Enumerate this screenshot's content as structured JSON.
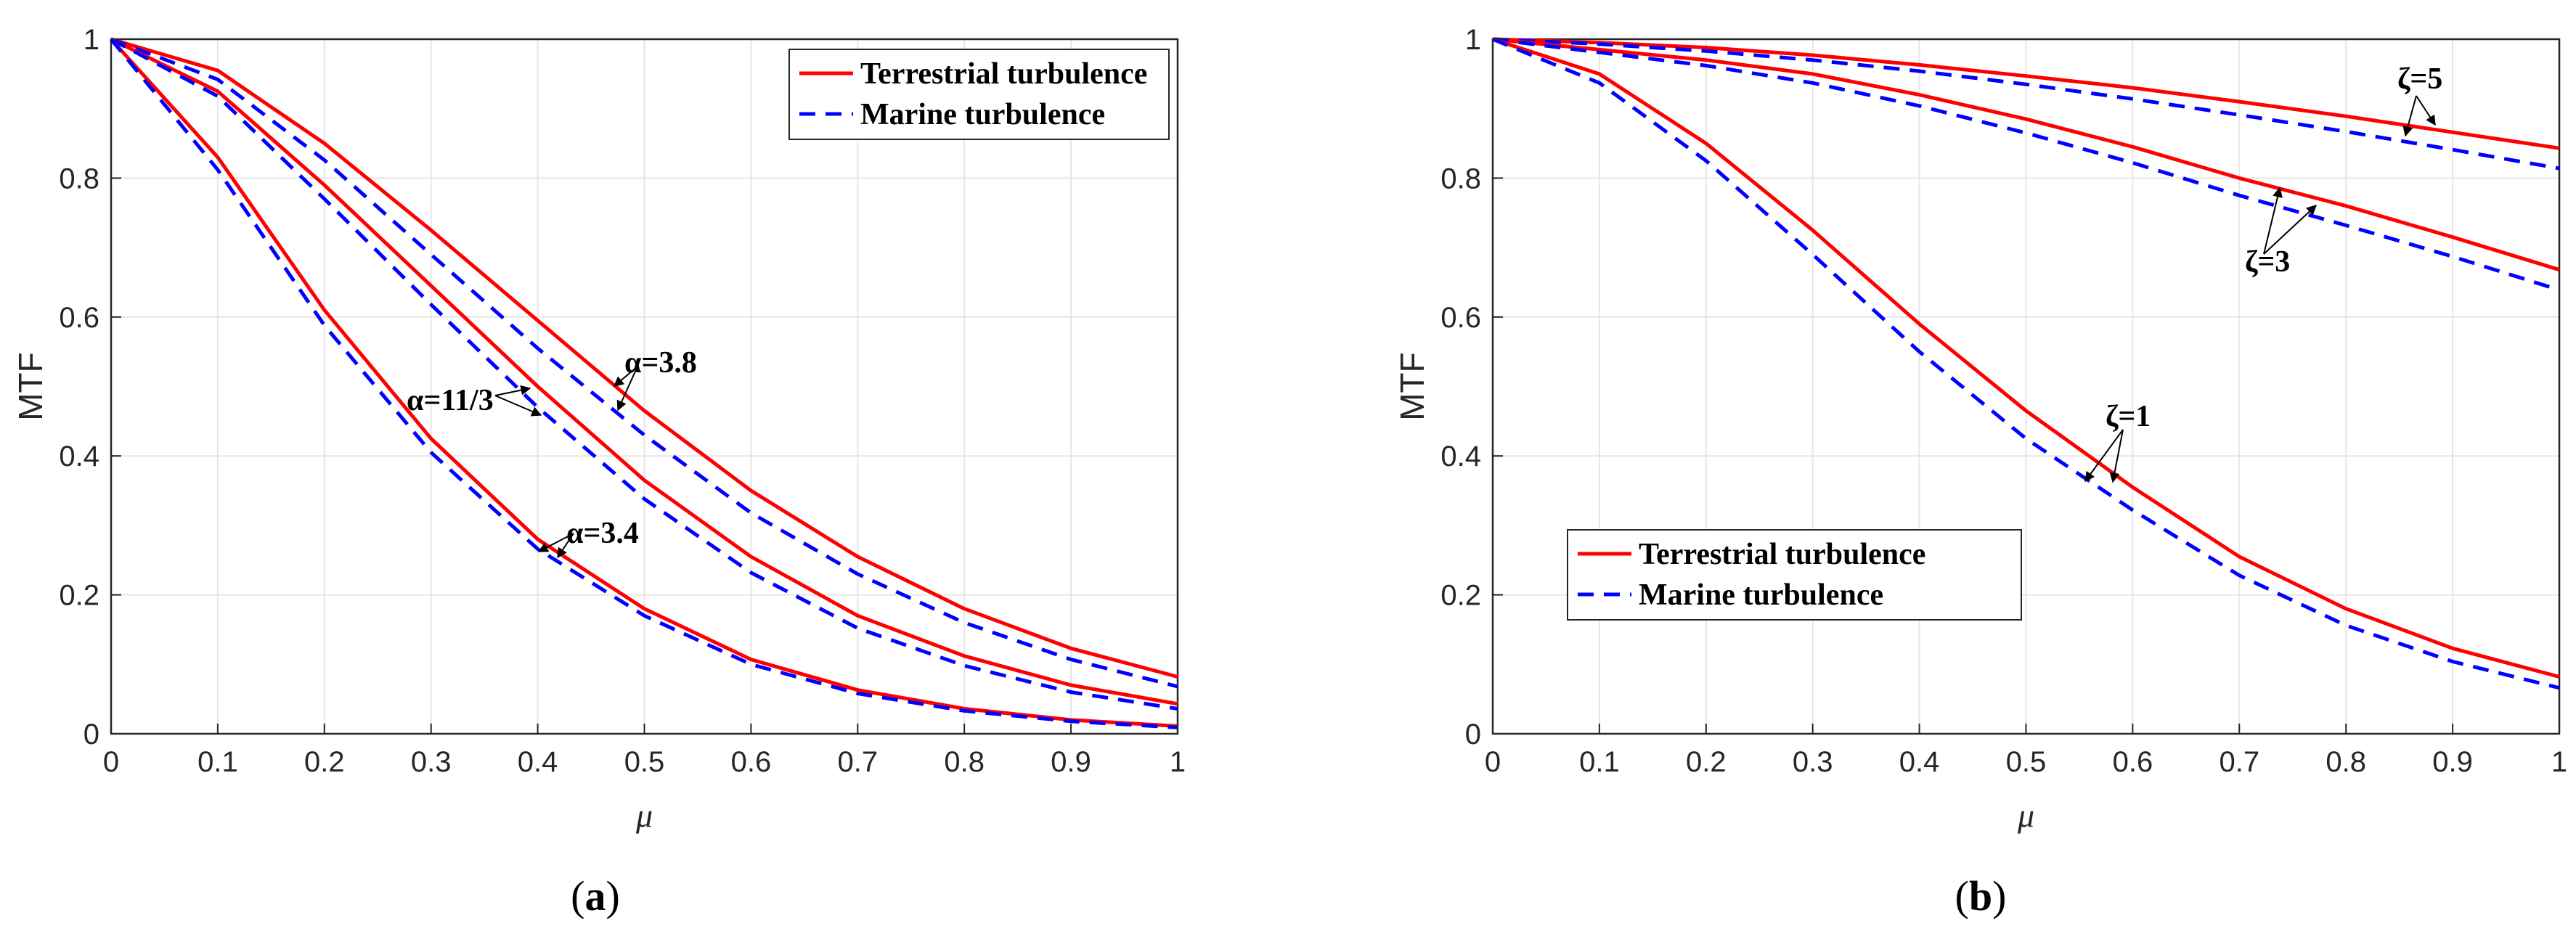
{
  "colors": {
    "terrestrial": "#ff0000",
    "marine": "#0000ff"
  },
  "chart_data": [
    {
      "type": "line",
      "panel_label": "a",
      "xlabel": "μ",
      "ylabel": "MTF",
      "xlim": [
        0,
        1
      ],
      "ylim": [
        0,
        1
      ],
      "grid": true,
      "x_ticks": [
        "0",
        "0.1",
        "0.2",
        "0.3",
        "0.4",
        "0.5",
        "0.6",
        "0.7",
        "0.8",
        "0.9",
        "1"
      ],
      "y_ticks": [
        "0",
        "0.2",
        "0.4",
        "0.6",
        "0.8",
        "1"
      ],
      "legend": {
        "position": "top-right",
        "entries": [
          "Terrestrial turbulence",
          "Marine turbulence"
        ]
      },
      "x": [
        0,
        0.1,
        0.2,
        0.3,
        0.4,
        0.5,
        0.6,
        0.7,
        0.8,
        0.9,
        1.0
      ],
      "series": [
        {
          "name": "Terrestrial turbulence α=3.8",
          "style": "terrestrial",
          "values": [
            1,
            0.955,
            0.85,
            0.725,
            0.595,
            0.465,
            0.35,
            0.255,
            0.18,
            0.123,
            0.082
          ]
        },
        {
          "name": "Marine turbulence α=3.8",
          "style": "marine",
          "values": [
            1,
            0.942,
            0.826,
            0.69,
            0.555,
            0.43,
            0.318,
            0.23,
            0.16,
            0.107,
            0.068
          ]
        },
        {
          "name": "Terrestrial turbulence α=11/3",
          "style": "terrestrial",
          "values": [
            1,
            0.925,
            0.79,
            0.645,
            0.5,
            0.365,
            0.255,
            0.17,
            0.112,
            0.07,
            0.043
          ]
        },
        {
          "name": "Marine turbulence α=11/3",
          "style": "marine",
          "values": [
            1,
            0.918,
            0.77,
            0.618,
            0.47,
            0.338,
            0.232,
            0.152,
            0.098,
            0.06,
            0.036
          ]
        },
        {
          "name": "Terrestrial turbulence α=3.4",
          "style": "terrestrial",
          "values": [
            1,
            0.83,
            0.61,
            0.425,
            0.28,
            0.18,
            0.107,
            0.063,
            0.036,
            0.02,
            0.011
          ]
        },
        {
          "name": "Marine turbulence α=3.4",
          "style": "marine",
          "values": [
            1,
            0.812,
            0.588,
            0.405,
            0.266,
            0.17,
            0.1,
            0.058,
            0.033,
            0.018,
            0.009
          ]
        }
      ],
      "annotations": [
        {
          "text": "α=3.8",
          "x": 0.48,
          "y": 0.525
        },
        {
          "text": "α=11/3",
          "x": 0.275,
          "y": 0.475
        },
        {
          "text": "α=3.4",
          "x": 0.43,
          "y": 0.28
        }
      ]
    },
    {
      "type": "line",
      "panel_label": "b",
      "xlabel": "μ",
      "ylabel": "MTF",
      "xlim": [
        0,
        1
      ],
      "ylim": [
        0,
        1
      ],
      "grid": true,
      "x_ticks": [
        "0",
        "0.1",
        "0.2",
        "0.3",
        "0.4",
        "0.5",
        "0.6",
        "0.7",
        "0.8",
        "0.9",
        "1"
      ],
      "y_ticks": [
        "0",
        "0.2",
        "0.4",
        "0.6",
        "0.8",
        "1"
      ],
      "legend": {
        "position": "bottom-left",
        "entries": [
          "Terrestrial turbulence",
          "Marine turbulence"
        ]
      },
      "x": [
        0,
        0.1,
        0.2,
        0.3,
        0.4,
        0.5,
        0.6,
        0.7,
        0.8,
        0.9,
        1.0
      ],
      "series": [
        {
          "name": "Terrestrial turbulence ζ=5",
          "style": "terrestrial",
          "values": [
            1,
            0.995,
            0.988,
            0.977,
            0.963,
            0.947,
            0.93,
            0.91,
            0.889,
            0.866,
            0.843
          ]
        },
        {
          "name": "Marine turbulence ζ=5",
          "style": "marine",
          "values": [
            1,
            0.993,
            0.983,
            0.97,
            0.954,
            0.935,
            0.914,
            0.891,
            0.867,
            0.841,
            0.814
          ]
        },
        {
          "name": "Terrestrial turbulence ζ=3",
          "style": "terrestrial",
          "values": [
            1,
            0.985,
            0.97,
            0.95,
            0.92,
            0.885,
            0.845,
            0.8,
            0.76,
            0.715,
            0.668
          ]
        },
        {
          "name": "Marine turbulence ζ=3",
          "style": "marine",
          "values": [
            1,
            0.981,
            0.962,
            0.937,
            0.904,
            0.865,
            0.822,
            0.775,
            0.732,
            0.687,
            0.639
          ]
        },
        {
          "name": "Terrestrial turbulence ζ=1",
          "style": "terrestrial",
          "values": [
            1,
            0.95,
            0.85,
            0.725,
            0.59,
            0.465,
            0.355,
            0.255,
            0.18,
            0.123,
            0.082
          ]
        },
        {
          "name": "Marine turbulence ζ=1",
          "style": "marine",
          "values": [
            1,
            0.937,
            0.825,
            0.69,
            0.55,
            0.425,
            0.322,
            0.228,
            0.156,
            0.104,
            0.066
          ]
        }
      ],
      "annotations": [
        {
          "text": "ζ=5",
          "x": 0.895,
          "y": 0.94
        },
        {
          "text": "ζ=3",
          "x": 0.745,
          "y": 0.72
        },
        {
          "text": "ζ=1",
          "x": 0.59,
          "y": 0.445
        }
      ]
    }
  ]
}
